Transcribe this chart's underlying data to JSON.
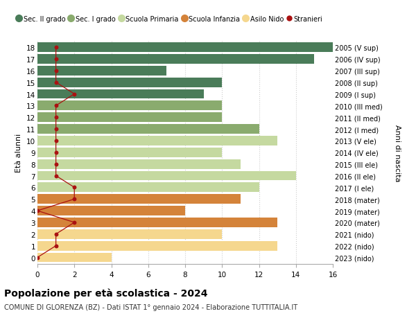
{
  "ages": [
    18,
    17,
    16,
    15,
    14,
    13,
    12,
    11,
    10,
    9,
    8,
    7,
    6,
    5,
    4,
    3,
    2,
    1,
    0
  ],
  "right_labels": [
    "2005 (V sup)",
    "2006 (IV sup)",
    "2007 (III sup)",
    "2008 (II sup)",
    "2009 (I sup)",
    "2010 (III med)",
    "2011 (II med)",
    "2012 (I med)",
    "2013 (V ele)",
    "2014 (IV ele)",
    "2015 (III ele)",
    "2016 (II ele)",
    "2017 (I ele)",
    "2018 (mater)",
    "2019 (mater)",
    "2020 (mater)",
    "2021 (nido)",
    "2022 (nido)",
    "2023 (nido)"
  ],
  "bar_values": [
    16,
    15,
    7,
    10,
    9,
    10,
    10,
    12,
    13,
    10,
    11,
    14,
    12,
    11,
    8,
    13,
    10,
    13,
    4
  ],
  "bar_colors": [
    "#4a7c59",
    "#4a7c59",
    "#4a7c59",
    "#4a7c59",
    "#4a7c59",
    "#8aab6e",
    "#8aab6e",
    "#8aab6e",
    "#c5d9a0",
    "#c5d9a0",
    "#c5d9a0",
    "#c5d9a0",
    "#c5d9a0",
    "#d4833a",
    "#d4833a",
    "#d4833a",
    "#f5d78e",
    "#f5d78e",
    "#f5d78e"
  ],
  "stranieri_values": [
    1,
    1,
    1,
    1,
    2,
    1,
    1,
    1,
    1,
    1,
    1,
    1,
    2,
    2,
    0,
    2,
    1,
    1,
    0
  ],
  "stranieri_color": "#aa1111",
  "legend_items": [
    {
      "label": "Sec. II grado",
      "color": "#4a7c59"
    },
    {
      "label": "Sec. I grado",
      "color": "#8aab6e"
    },
    {
      "label": "Scuola Primaria",
      "color": "#c5d9a0"
    },
    {
      "label": "Scuola Infanzia",
      "color": "#d4833a"
    },
    {
      "label": "Asilo Nido",
      "color": "#f5d78e"
    }
  ],
  "title": "Popolazione per età scolastica - 2024",
  "subtitle": "COMUNE DI GLORENZA (BZ) - Dati ISTAT 1° gennaio 2024 - Elaborazione TUTTITALIA.IT",
  "ylabel_left": "Età alunni",
  "ylabel_right": "Anni di nascita",
  "xlim": [
    0,
    16
  ],
  "xticks": [
    0,
    2,
    4,
    6,
    8,
    10,
    12,
    14,
    16
  ],
  "bg_color": "#ffffff",
  "bar_height": 0.82,
  "grid_color": "#cccccc"
}
